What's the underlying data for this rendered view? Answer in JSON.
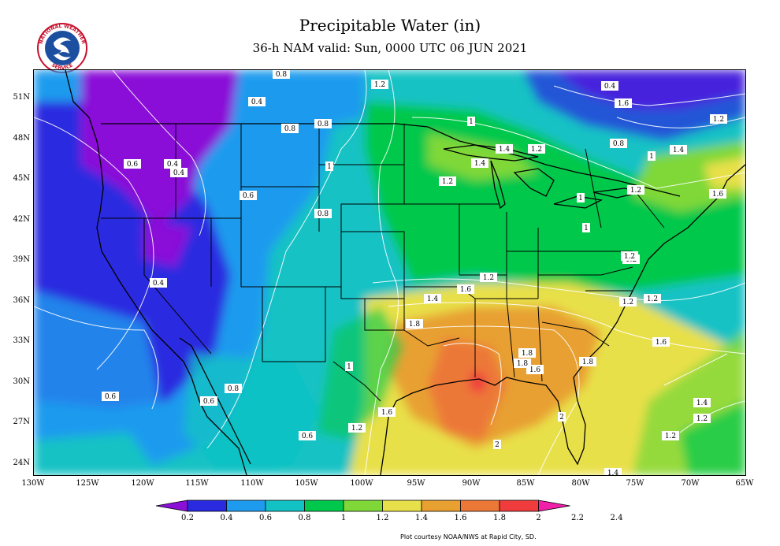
{
  "title": "Precipitable Water (in)",
  "subtitle": "36-h NAM valid: Sun, 0000 UTC 06 JUN 2021",
  "logo": {
    "text_top": "NATIONAL WEATHER",
    "text_bottom": "SERVICE"
  },
  "latitudes": [
    "51N",
    "48N",
    "45N",
    "42N",
    "39N",
    "36N",
    "33N",
    "30N",
    "27N",
    "24N"
  ],
  "longitudes": [
    "130W",
    "125W",
    "120W",
    "115W",
    "110W",
    "105W",
    "100W",
    "95W",
    "90W",
    "85W",
    "80W",
    "75W",
    "70W",
    "65W"
  ],
  "colorbar": {
    "colors": [
      "#8a10d8",
      "#2a2ae0",
      "#1e9bee",
      "#12c2c4",
      "#00c84c",
      "#7fd838",
      "#e8e04a",
      "#e8a030",
      "#ec7838",
      "#f03c3c",
      "#f020a8"
    ],
    "labels": [
      "0.2",
      "0.4",
      "0.6",
      "0.8",
      "1",
      "1.2",
      "1.4",
      "1.6",
      "1.8",
      "2",
      "2.2",
      "2.4"
    ]
  },
  "contour_labels": [
    "0.8",
    "1.2",
    "0.4",
    "0.4",
    "0.6",
    "0.4",
    "0.4",
    "0.8",
    "0.8",
    "1",
    "1",
    "1.4",
    "1.2",
    "1.2",
    "0.8",
    "1.4",
    "1.4",
    "1",
    "1",
    "1.2",
    "1.6",
    "0.6",
    "0.8",
    "1.2",
    "1",
    "1.4",
    "1.6",
    "1.2",
    "1.2",
    "1.2",
    "0.4",
    "1.8",
    "1.8",
    "1.8",
    "1.6",
    "1.8",
    "1",
    "0.6",
    "0.8",
    "0.6",
    "1.6",
    "2",
    "1.2",
    "0.6",
    "2",
    "1.4",
    "1.2",
    "1.2",
    "1.4",
    "1.6",
    "1.2",
    "1.2",
    "1.6"
  ],
  "credit": "Plot courtesy NOAA/NWS at Rapid City, SD."
}
